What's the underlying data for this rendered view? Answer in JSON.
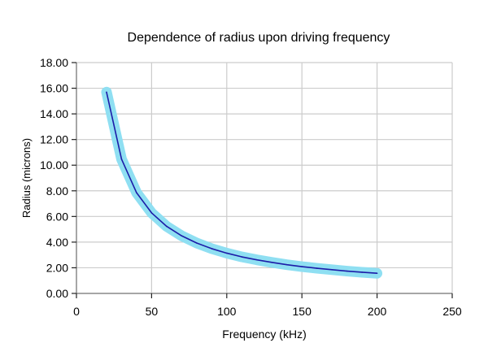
{
  "chart_data": {
    "type": "line",
    "title": "Dependence of radius upon driving frequency",
    "xlabel": "Frequency (kHz)",
    "ylabel": "Radius (microns)",
    "xlim": [
      0,
      250
    ],
    "ylim": [
      0,
      18
    ],
    "xticks": [
      "0",
      "50",
      "100",
      "150",
      "200",
      "250"
    ],
    "yticks": [
      "0.00",
      "2.00",
      "4.00",
      "6.00",
      "8.00",
      "10.00",
      "12.00",
      "14.00",
      "16.00",
      "18.00"
    ],
    "grid": true,
    "legend": "none",
    "series": [
      {
        "name": "Radius",
        "x": [
          20,
          30,
          40,
          50,
          60,
          70,
          80,
          90,
          100,
          110,
          120,
          130,
          140,
          150,
          160,
          170,
          180,
          190,
          200
        ],
        "y": [
          15.7,
          10.47,
          7.85,
          6.28,
          5.23,
          4.49,
          3.93,
          3.49,
          3.14,
          2.85,
          2.62,
          2.42,
          2.24,
          2.09,
          1.96,
          1.85,
          1.74,
          1.65,
          1.57
        ],
        "color": "#1c1ca8",
        "halo_color": "#8fdff2"
      }
    ]
  }
}
